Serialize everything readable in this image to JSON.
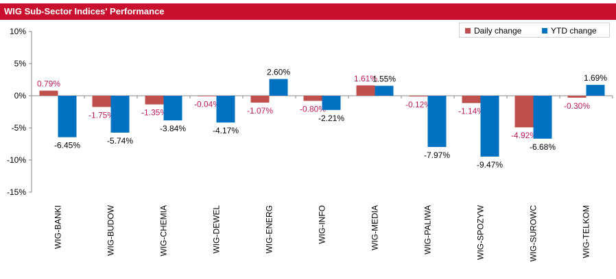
{
  "header": {
    "title": "WIG Sub-Sector Indices' Performance"
  },
  "colors": {
    "header": "#c8102e",
    "daily": "#c0504d",
    "ytd": "#0070c0",
    "daily_label": "#c0185a"
  },
  "chart_data": {
    "type": "bar",
    "title": "WIG Sub-Sector Indices' Performance",
    "xlabel": "",
    "ylabel": "",
    "ylim": [
      -15,
      10
    ],
    "yticks": [
      10,
      5,
      0,
      -5,
      -10,
      -15
    ],
    "ytick_labels": [
      "10%",
      "5%",
      "0%",
      "-5%",
      "-10%",
      "-15%"
    ],
    "grid": false,
    "legend_position": "top-right",
    "categories": [
      "WIG-BANKI",
      "WIG-BUDOW",
      "WIG-CHEMIA",
      "WIG-DEWEL",
      "WIG-ENERG",
      "WIG-INFO",
      "WIG-MEDIA",
      "WIG-PALIWA",
      "WIG-SPOZYW",
      "WIG-SUROWC",
      "WIG-TELKOM"
    ],
    "series": [
      {
        "name": "Daily change",
        "values": [
          0.79,
          -1.75,
          -1.35,
          -0.04,
          -1.07,
          -0.8,
          1.61,
          -0.12,
          -1.14,
          -4.92,
          -0.3
        ],
        "labels": [
          "0.79%",
          "-1.75%",
          "-1.35%",
          "-0.04%",
          "-1.07%",
          "-0.80%",
          "1.61%",
          "-0.12%",
          "-1.14%",
          "-4.92%",
          "-0.30%"
        ]
      },
      {
        "name": "YTD change",
        "values": [
          -6.45,
          -5.74,
          -3.84,
          -4.17,
          2.6,
          -2.21,
          1.55,
          -7.97,
          -9.47,
          -6.68,
          1.69
        ],
        "labels": [
          "-6.45%",
          "-5.74%",
          "-3.84%",
          "-4.17%",
          "2.60%",
          "-2.21%",
          "1.55%",
          "-7.97%",
          "-9.47%",
          "-6.68%",
          "1.69%"
        ]
      }
    ]
  }
}
